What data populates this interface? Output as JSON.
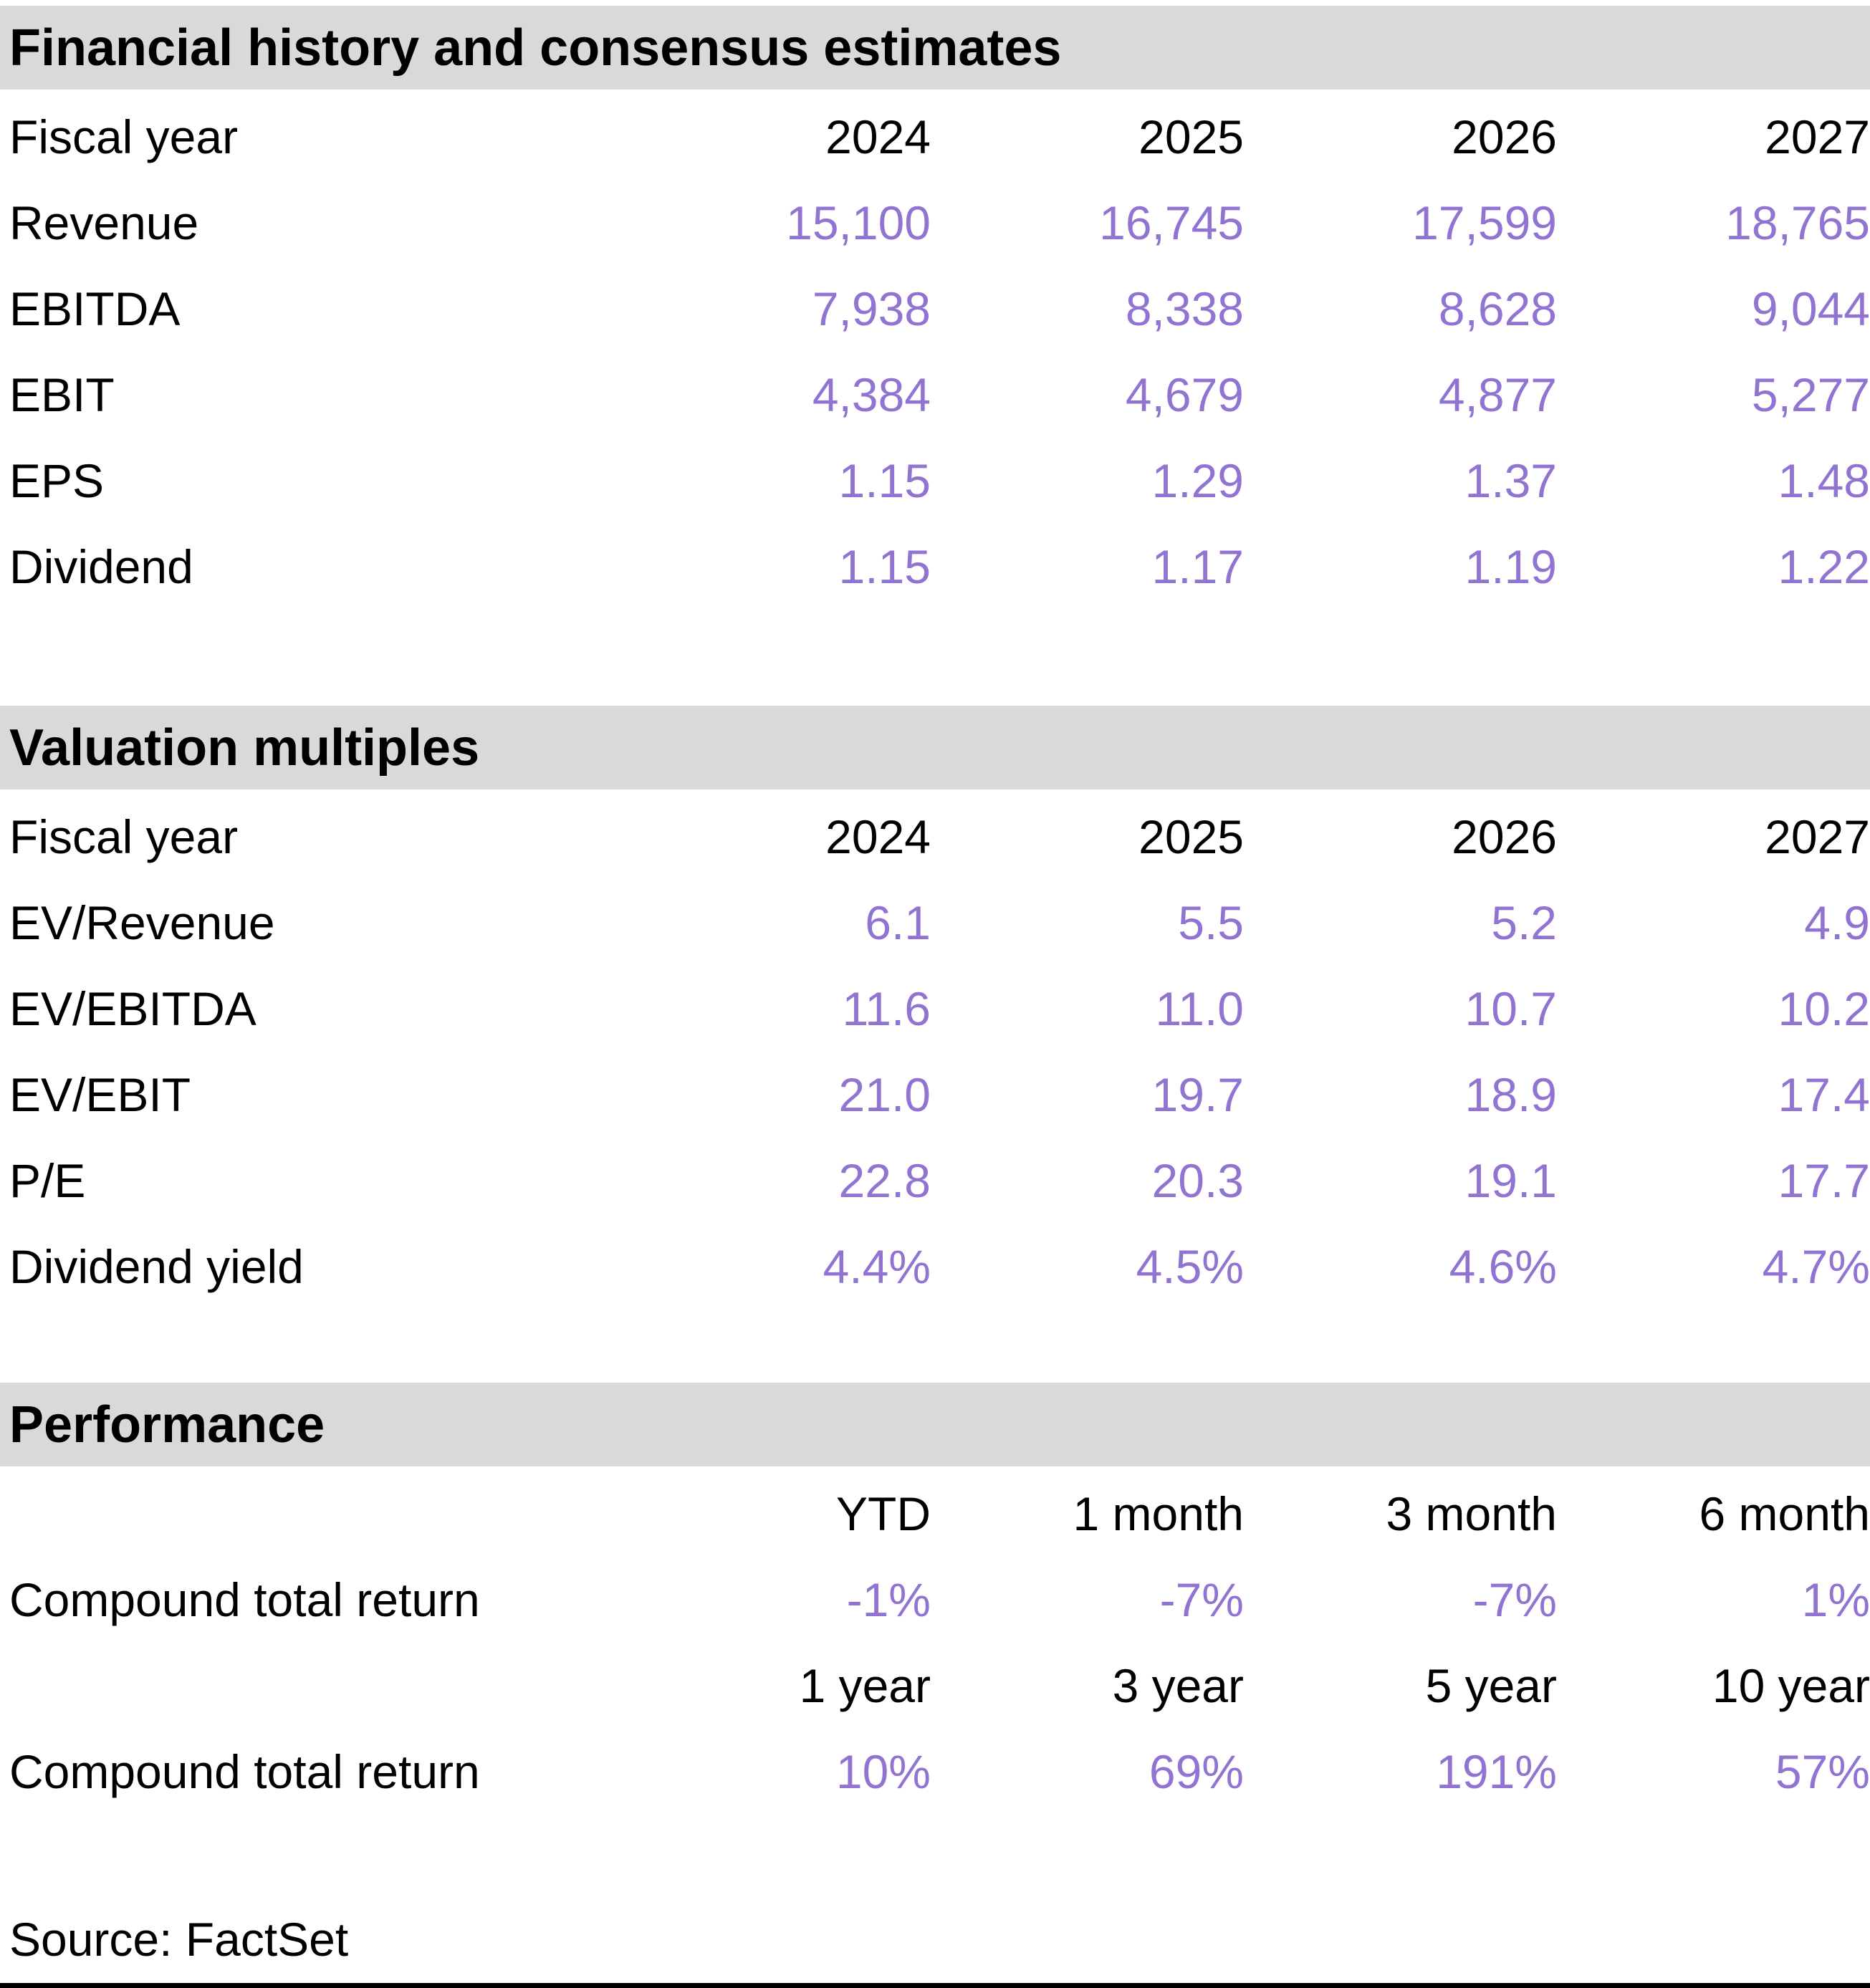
{
  "colors": {
    "section_header_bg": "#d9d9d9",
    "value_text": "#9173d2",
    "label_text": "#000000",
    "bottom_rule": "#000000"
  },
  "chart_data": [
    {
      "type": "table",
      "title": "Financial history and consensus estimates",
      "rows": [
        [
          "Fiscal year",
          "2024",
          "2025",
          "2026",
          "2027"
        ],
        [
          "Revenue",
          "15,100",
          "16,745",
          "17,599",
          "18,765"
        ],
        [
          "EBITDA",
          "7,938",
          "8,338",
          "8,628",
          "9,044"
        ],
        [
          "EBIT",
          "4,384",
          "4,679",
          "4,877",
          "5,277"
        ],
        [
          "EPS",
          "1.15",
          "1.29",
          "1.37",
          "1.48"
        ],
        [
          "Dividend",
          "1.15",
          "1.17",
          "1.19",
          "1.22"
        ]
      ],
      "header_row_indices": [
        0
      ]
    },
    {
      "type": "table",
      "title": "Valuation multiples",
      "rows": [
        [
          "Fiscal year",
          "2024",
          "2025",
          "2026",
          "2027"
        ],
        [
          "EV/Revenue",
          "6.1",
          "5.5",
          "5.2",
          "4.9"
        ],
        [
          "EV/EBITDA",
          "11.6",
          "11.0",
          "10.7",
          "10.2"
        ],
        [
          "EV/EBIT",
          "21.0",
          "19.7",
          "18.9",
          "17.4"
        ],
        [
          "P/E",
          "22.8",
          "20.3",
          "19.1",
          "17.7"
        ],
        [
          "Dividend yield",
          "4.4%",
          "4.5%",
          "4.6%",
          "4.7%"
        ]
      ],
      "header_row_indices": [
        0
      ]
    },
    {
      "type": "table",
      "title": "Performance",
      "rows": [
        [
          "",
          "YTD",
          "1 month",
          "3 month",
          "6 month"
        ],
        [
          "Compound total return",
          "-1%",
          "-7%",
          "-7%",
          "1%"
        ],
        [
          "",
          "1 year",
          "3 year",
          "5 year",
          "10 year"
        ],
        [
          "Compound total return",
          "10%",
          "69%",
          "191%",
          "57%"
        ]
      ],
      "header_row_indices": [
        0,
        2
      ]
    }
  ],
  "footer": {
    "source_label": "Source: FactSet"
  }
}
